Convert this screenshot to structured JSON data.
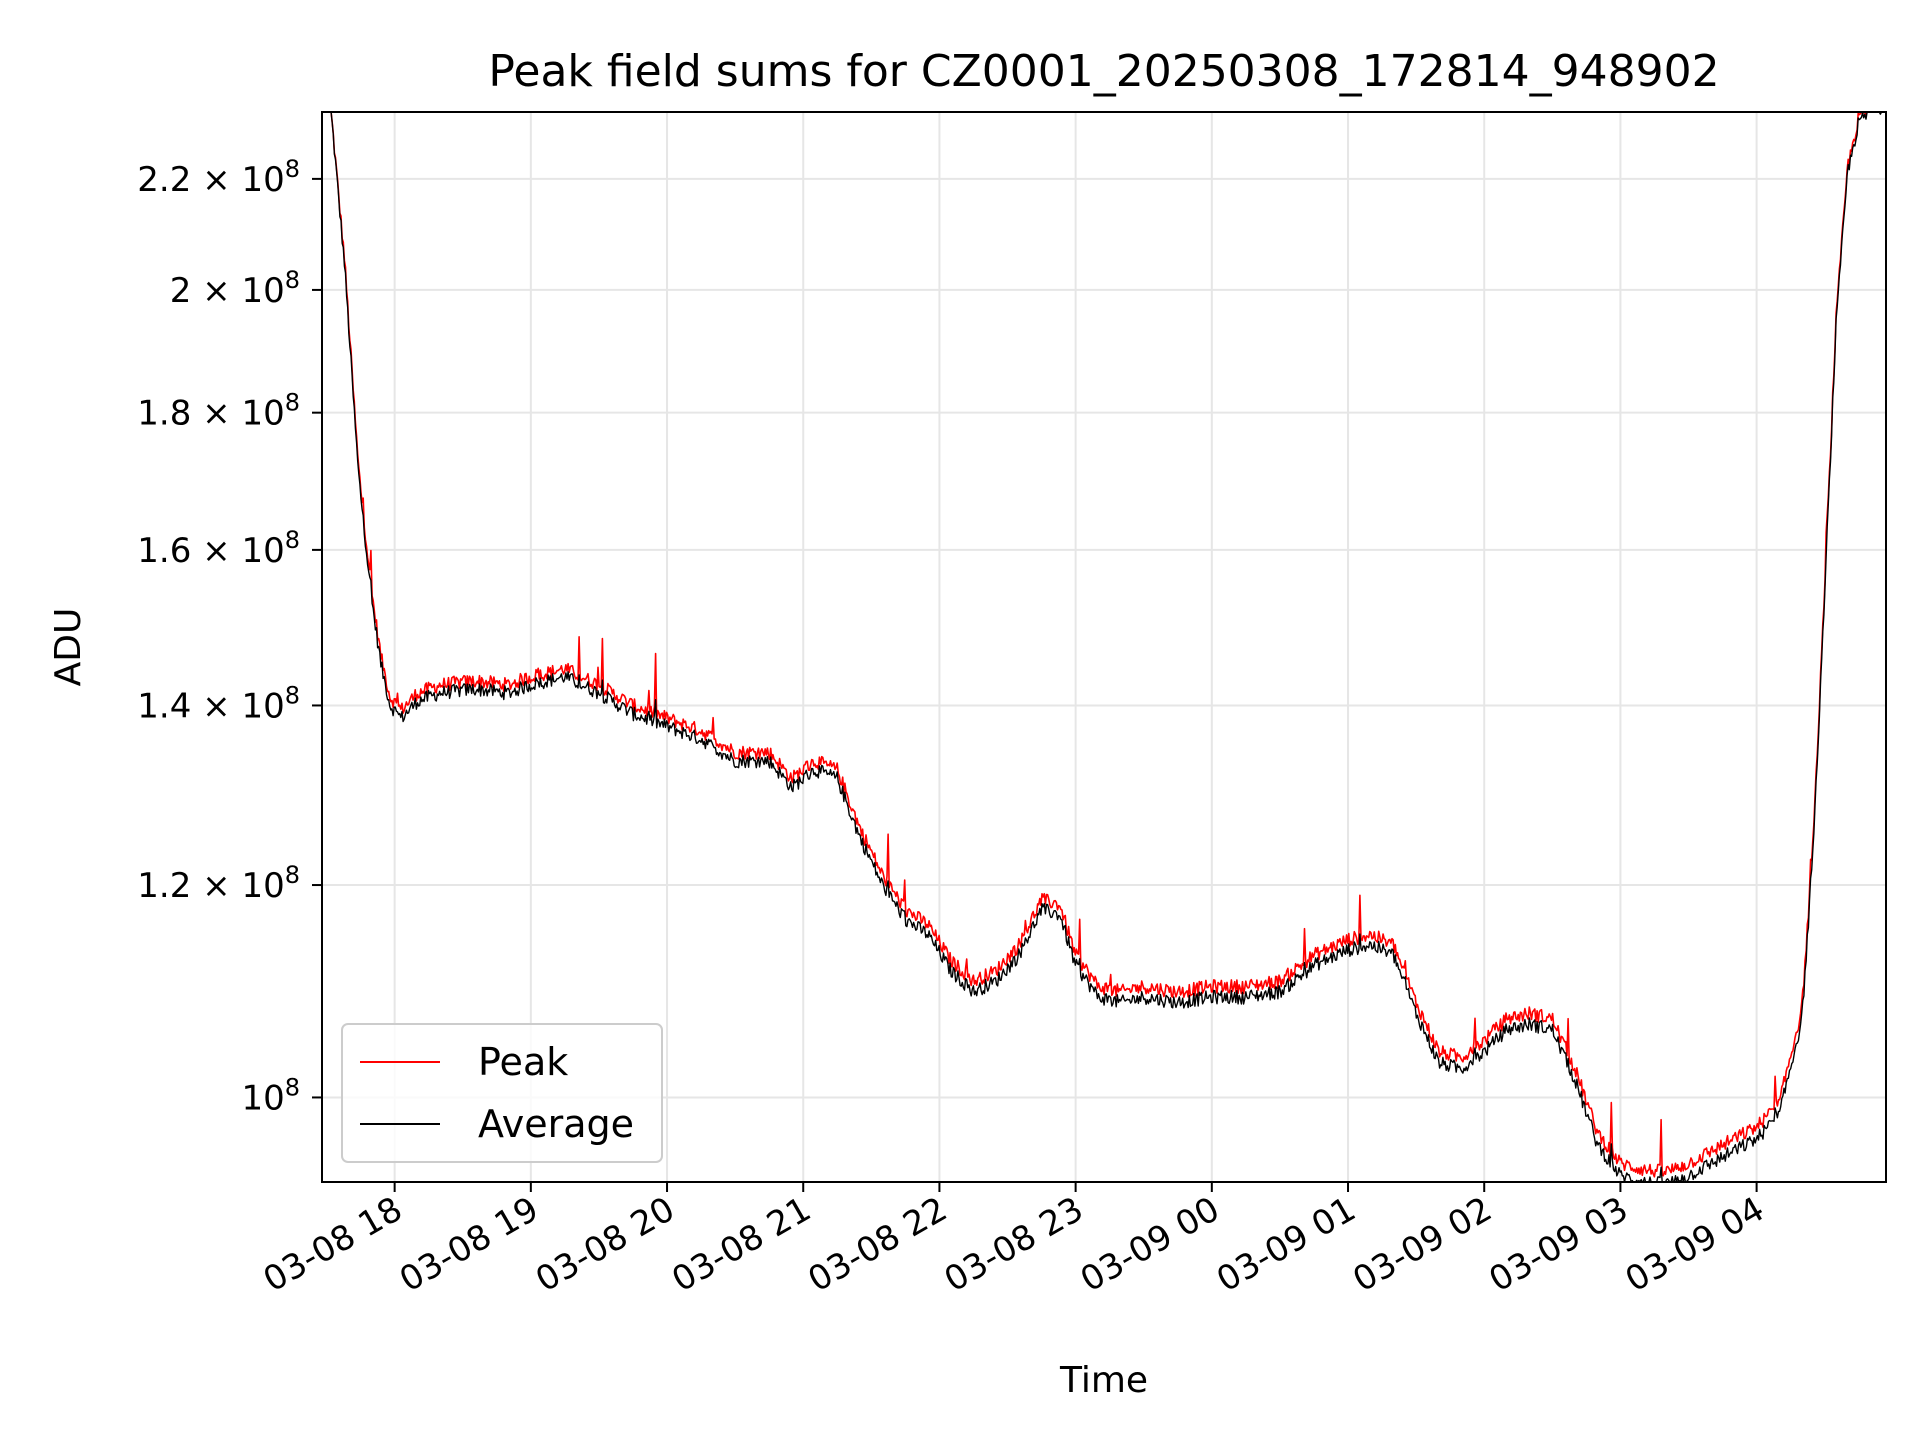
{
  "chart_data": {
    "type": "line",
    "title": "Peak field sums for CZ0001_20250308_172814_948902",
    "xlabel": "Time",
    "ylabel": "ADU",
    "yscale": "log",
    "ylim": [
      93000000,
      233000000
    ],
    "xlim": [
      "2025-03-08 17:28",
      "2025-03-09 04:57"
    ],
    "grid": true,
    "legend_position": "lower-left",
    "x_ticks": [
      "2025-03-08 18:00",
      "2025-03-08 19:00",
      "2025-03-08 20:00",
      "2025-03-08 21:00",
      "2025-03-08 22:00",
      "2025-03-08 23:00",
      "2025-03-09 00:00",
      "2025-03-09 01:00",
      "2025-03-09 02:00",
      "2025-03-09 03:00",
      "2025-03-09 04:00"
    ],
    "x_tick_labels": [
      "03-08 18",
      "03-08 19",
      "03-08 20",
      "03-08 21",
      "03-08 22",
      "03-08 23",
      "03-09 00",
      "03-09 01",
      "03-09 02",
      "03-09 03",
      "03-09 04"
    ],
    "y_ticks": [
      100000000,
      120000000,
      140000000,
      160000000,
      180000000,
      200000000,
      220000000
    ],
    "y_tick_labels": [
      {
        "mantissa": "",
        "exp": "8"
      },
      {
        "mantissa": "1.2",
        "exp": "8"
      },
      {
        "mantissa": "1.4",
        "exp": "8"
      },
      {
        "mantissa": "1.6",
        "exp": "8"
      },
      {
        "mantissa": "1.8",
        "exp": "8"
      },
      {
        "mantissa": "2",
        "exp": "8"
      },
      {
        "mantissa": "2.2",
        "exp": "8"
      }
    ],
    "x": [
      "2025-03-08 17:32",
      "2025-03-08 17:38",
      "2025-03-08 17:44",
      "2025-03-08 17:50",
      "2025-03-08 17:54",
      "2025-03-08 17:58",
      "2025-03-08 18:03",
      "2025-03-08 18:10",
      "2025-03-08 18:20",
      "2025-03-08 18:35",
      "2025-03-08 18:50",
      "2025-03-08 19:00",
      "2025-03-08 19:15",
      "2025-03-08 19:30",
      "2025-03-08 19:45",
      "2025-03-08 20:00",
      "2025-03-08 20:15",
      "2025-03-08 20:30",
      "2025-03-08 20:45",
      "2025-03-08 20:55",
      "2025-03-08 21:05",
      "2025-03-08 21:15",
      "2025-03-08 21:25",
      "2025-03-08 21:35",
      "2025-03-08 21:45",
      "2025-03-08 21:55",
      "2025-03-08 22:05",
      "2025-03-08 22:15",
      "2025-03-08 22:25",
      "2025-03-08 22:35",
      "2025-03-08 22:45",
      "2025-03-08 22:53",
      "2025-03-08 23:00",
      "2025-03-08 23:10",
      "2025-03-08 23:20",
      "2025-03-08 23:30",
      "2025-03-08 23:45",
      "2025-03-09 00:00",
      "2025-03-09 00:15",
      "2025-03-09 00:30",
      "2025-03-09 00:45",
      "2025-03-09 01:00",
      "2025-03-09 01:10",
      "2025-03-09 01:20",
      "2025-03-09 01:30",
      "2025-03-09 01:40",
      "2025-03-09 01:50",
      "2025-03-09 02:00",
      "2025-03-09 02:10",
      "2025-03-09 02:20",
      "2025-03-09 02:30",
      "2025-03-09 02:40",
      "2025-03-09 02:50",
      "2025-03-09 03:00",
      "2025-03-09 03:10",
      "2025-03-09 03:20",
      "2025-03-09 03:30",
      "2025-03-09 03:40",
      "2025-03-09 03:50",
      "2025-03-09 04:00",
      "2025-03-09 04:10",
      "2025-03-09 04:20",
      "2025-03-09 04:25",
      "2025-03-09 04:30",
      "2025-03-09 04:35",
      "2025-03-09 04:40",
      "2025-03-09 04:45",
      "2025-03-09 04:50",
      "2025-03-09 04:55"
    ],
    "series": [
      {
        "name": "Peak",
        "color": "#ff0000",
        "values": [
          233000000,
          205000000,
          172000000,
          154000000,
          146000000,
          141000000,
          139500000,
          141500000,
          142500000,
          143000000,
          142500000,
          143500000,
          144500000,
          142500000,
          140000000,
          138500000,
          137000000,
          134500000,
          134500000,
          131500000,
          133500000,
          132500000,
          126000000,
          121000000,
          117500000,
          116000000,
          112500000,
          110500000,
          111500000,
          114000000,
          118500000,
          118000000,
          113000000,
          110000000,
          109500000,
          110000000,
          109500000,
          110000000,
          110000000,
          110500000,
          113000000,
          114500000,
          115000000,
          114000000,
          108500000,
          104000000,
          103500000,
          105000000,
          107000000,
          107500000,
          107000000,
          102500000,
          97000000,
          94500000,
          94000000,
          93800000,
          94500000,
          95500000,
          96500000,
          97500000,
          99500000,
          108000000,
          125000000,
          155000000,
          195000000,
          222000000,
          232000000,
          234000000,
          234500000
        ]
      },
      {
        "name": "Average",
        "color": "#000000",
        "values": [
          233000000,
          204000000,
          171000000,
          153000000,
          145000000,
          140000000,
          138500000,
          140500000,
          141500000,
          142000000,
          141500000,
          142500000,
          143500000,
          141500000,
          139000000,
          137500000,
          136000000,
          133500000,
          133500000,
          130500000,
          132500000,
          131500000,
          125000000,
          120000000,
          116500000,
          115000000,
          111500000,
          109500000,
          110500000,
          113000000,
          117500000,
          117000000,
          112000000,
          109000000,
          108500000,
          109000000,
          108500000,
          109000000,
          109000000,
          109500000,
          112000000,
          113500000,
          114000000,
          113000000,
          107500000,
          103000000,
          102500000,
          104000000,
          106000000,
          106500000,
          106000000,
          101500000,
          96000000,
          93500000,
          93000000,
          92800000,
          93500000,
          94500000,
          95500000,
          96500000,
          98500000,
          107000000,
          124000000,
          154000000,
          194000000,
          221000000,
          231000000,
          233000000,
          234000000
        ]
      }
    ]
  }
}
